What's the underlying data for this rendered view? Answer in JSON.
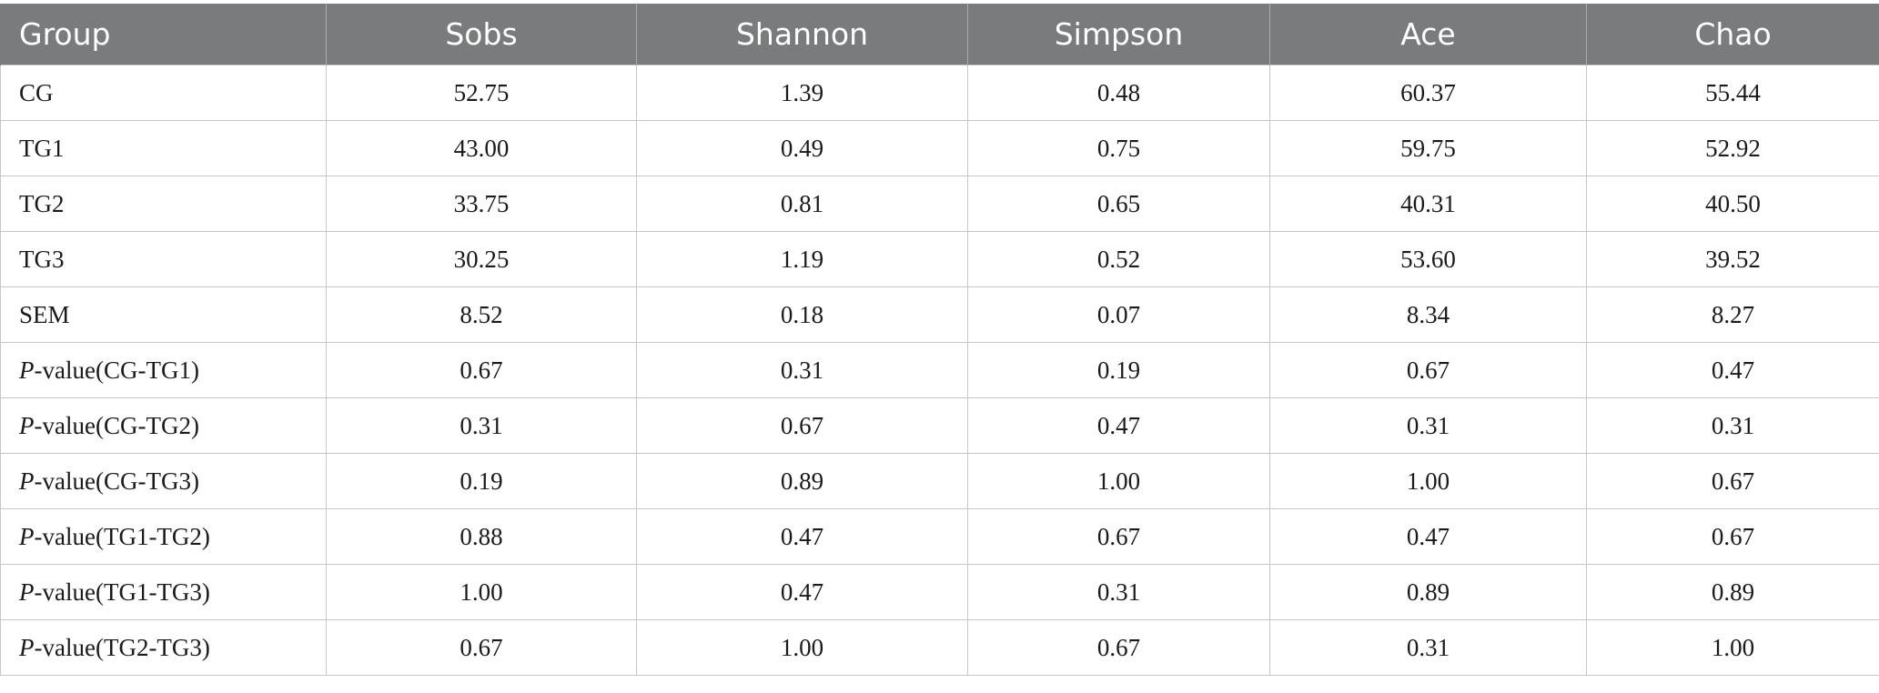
{
  "table": {
    "headers": [
      "Group",
      "Sobs",
      "Shannon",
      "Simpson",
      "Ace",
      "Chao"
    ],
    "rows": [
      {
        "label_prefix": "",
        "label": "CG",
        "values": [
          "52.75",
          "1.39",
          "0.48",
          "60.37",
          "55.44"
        ]
      },
      {
        "label_prefix": "",
        "label": "TG1",
        "values": [
          "43.00",
          "0.49",
          "0.75",
          "59.75",
          "52.92"
        ]
      },
      {
        "label_prefix": "",
        "label": "TG2",
        "values": [
          "33.75",
          "0.81",
          "0.65",
          "40.31",
          "40.50"
        ]
      },
      {
        "label_prefix": "",
        "label": "TG3",
        "values": [
          "30.25",
          "1.19",
          "0.52",
          "53.60",
          "39.52"
        ]
      },
      {
        "label_prefix": "",
        "label": "SEM",
        "values": [
          "8.52",
          "0.18",
          "0.07",
          "8.34",
          "8.27"
        ]
      },
      {
        "label_prefix": "P",
        "label": "-value(CG-TG1)",
        "values": [
          "0.67",
          "0.31",
          "0.19",
          "0.67",
          "0.47"
        ]
      },
      {
        "label_prefix": "P",
        "label": "-value(CG-TG2)",
        "values": [
          "0.31",
          "0.67",
          "0.47",
          "0.31",
          "0.31"
        ]
      },
      {
        "label_prefix": "P",
        "label": "-value(CG-TG3)",
        "values": [
          "0.19",
          "0.89",
          "1.00",
          "1.00",
          "0.67"
        ]
      },
      {
        "label_prefix": "P",
        "label": "-value(TG1-TG2)",
        "values": [
          "0.88",
          "0.47",
          "0.67",
          "0.47",
          "0.67"
        ]
      },
      {
        "label_prefix": "P",
        "label": "-value(TG1-TG3)",
        "values": [
          "1.00",
          "0.47",
          "0.31",
          "0.89",
          "0.89"
        ]
      },
      {
        "label_prefix": "P",
        "label": "-value(TG2-TG3)",
        "values": [
          "0.67",
          "1.00",
          "0.67",
          "0.31",
          "1.00"
        ]
      }
    ]
  }
}
